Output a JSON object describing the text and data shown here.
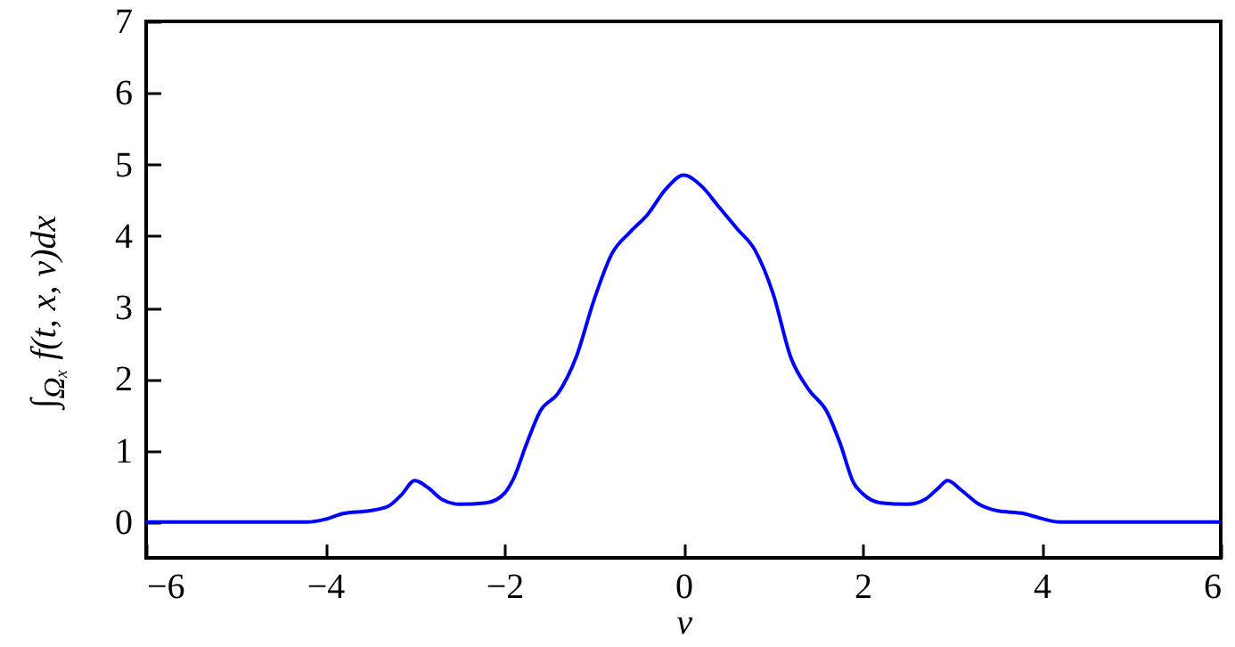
{
  "chart_data": {
    "type": "line",
    "xlabel": "v",
    "ylabel": "∫$_{Ωₓ}$ f(t, x, v)dx",
    "x": [
      -6,
      -4.2,
      -4.0,
      -3.8,
      -3.5,
      -3.3,
      -3.15,
      -3.0,
      -2.85,
      -2.7,
      -2.5,
      -2.2,
      -2.0,
      -1.9,
      -1.75,
      -1.6,
      -1.4,
      -1.2,
      -1.0,
      -0.8,
      -0.6,
      -0.4,
      -0.2,
      0,
      0.2,
      0.4,
      0.6,
      0.8,
      1.0,
      1.2,
      1.4,
      1.6,
      1.75,
      1.9,
      2.0,
      2.2,
      2.5,
      2.7,
      2.85,
      2.95,
      3.1,
      3.3,
      3.5,
      3.8,
      4.0,
      4.2,
      6
    ],
    "series": [
      {
        "color": "#0000ff",
        "values": [
          0,
          0,
          0.04,
          0.12,
          0.16,
          0.22,
          0.38,
          0.58,
          0.48,
          0.32,
          0.25,
          0.27,
          0.4,
          0.6,
          1.1,
          1.55,
          1.8,
          2.3,
          3.1,
          3.75,
          4.05,
          4.3,
          4.65,
          4.85,
          4.7,
          4.4,
          4.1,
          3.8,
          3.2,
          2.3,
          1.85,
          1.55,
          1.1,
          0.55,
          0.4,
          0.27,
          0.25,
          0.32,
          0.48,
          0.58,
          0.45,
          0.25,
          0.16,
          0.12,
          0.05,
          0,
          0
        ]
      }
    ],
    "xlim": [
      -6,
      6
    ],
    "xticks": [
      -6,
      -4,
      -2,
      0,
      2,
      4,
      6
    ],
    "ylim": [
      -0.5,
      7
    ],
    "yticks": [
      0,
      1,
      2,
      3,
      4,
      5,
      6,
      7
    ],
    "grid": false,
    "marker": "none",
    "line_style": "solid"
  }
}
